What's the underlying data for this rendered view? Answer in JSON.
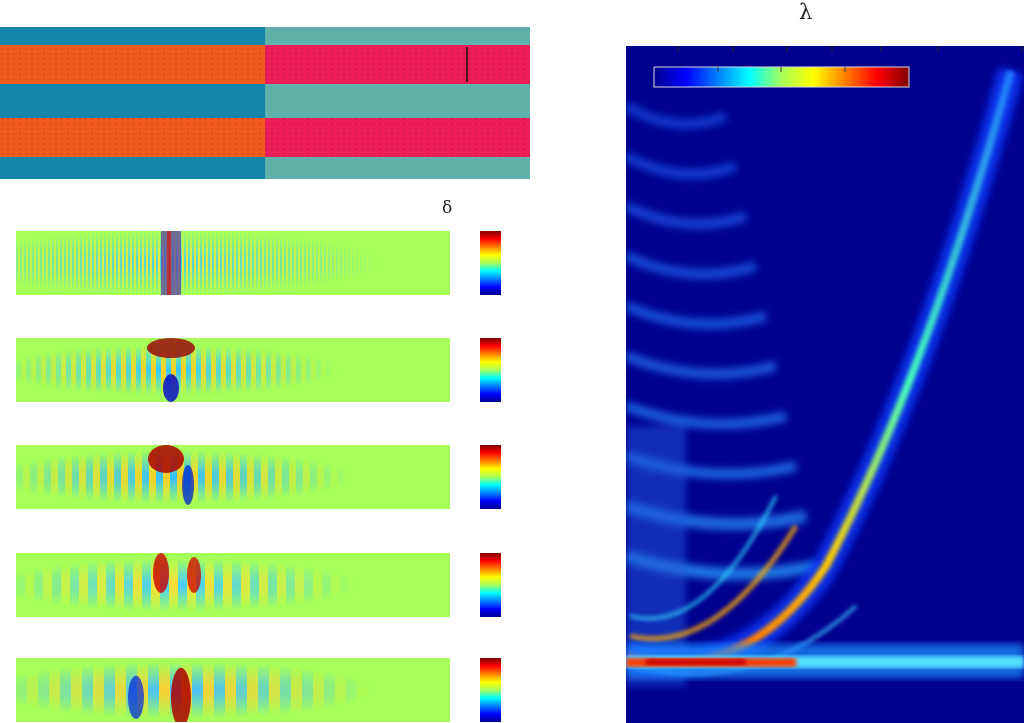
{
  "labels": {
    "delta": "δ",
    "lambda": "λ"
  },
  "colors": {
    "cladding_left": "#1586ab",
    "cladding_right": "#5fb1a9",
    "core_left": "#f05a1e",
    "core_right": "#ee1e5a",
    "field_background": "#a6ff5a",
    "spectrum_background": "#00008f"
  },
  "panels": [
    {
      "name": "field-panel-1"
    },
    {
      "name": "field-panel-2"
    },
    {
      "name": "field-panel-3"
    },
    {
      "name": "field-panel-4"
    },
    {
      "name": "field-panel-5"
    }
  ]
}
